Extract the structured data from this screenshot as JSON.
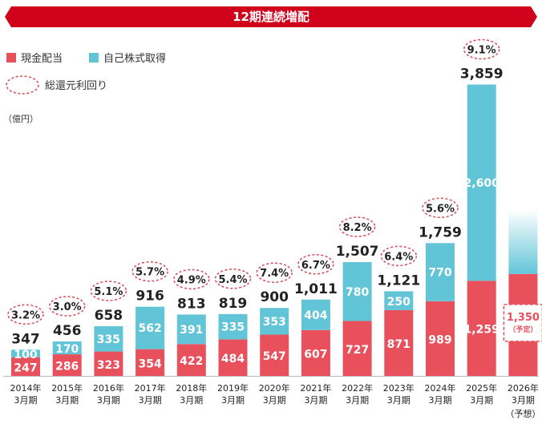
{
  "banner": {
    "title": "12期連続増配",
    "color": "#d0021b"
  },
  "legend": {
    "cash": "現金配当",
    "buyback": "自己株式取得",
    "yield": "総還元利回り"
  },
  "unit": "（億円）",
  "colors": {
    "cash": "#e8505b",
    "buyback": "#62c5d7",
    "ring": "#d94b57"
  },
  "chart_data": {
    "type": "bar",
    "stacked": true,
    "categories": [
      [
        "2014年",
        "3月期"
      ],
      [
        "2015年",
        "3月期"
      ],
      [
        "2016年",
        "3月期"
      ],
      [
        "2017年",
        "3月期"
      ],
      [
        "2018年",
        "3月期"
      ],
      [
        "2019年",
        "3月期"
      ],
      [
        "2020年",
        "3月期"
      ],
      [
        "2021年",
        "3月期"
      ],
      [
        "2022年",
        "3月期"
      ],
      [
        "2023年",
        "3月期"
      ],
      [
        "2024年",
        "3月期"
      ],
      [
        "2025年",
        "3月期"
      ],
      [
        "2026年",
        "3月期"
      ]
    ],
    "series": [
      {
        "name": "現金配当",
        "values": [
          247,
          286,
          323,
          354,
          422,
          484,
          547,
          607,
          727,
          871,
          989,
          1259,
          1350
        ]
      },
      {
        "name": "自己株式取得",
        "values": [
          100,
          170,
          335,
          562,
          391,
          335,
          353,
          404,
          780,
          250,
          770,
          2600,
          null
        ]
      }
    ],
    "totals": [
      347,
      456,
      658,
      916,
      813,
      819,
      900,
      1011,
      1507,
      1121,
      1759,
      3859,
      null
    ],
    "total_labels": [
      "347",
      "456",
      "658",
      "916",
      "813",
      "819",
      "900",
      "1,011",
      "1,507",
      "1,121",
      "1,759",
      "3,859",
      ""
    ],
    "segment_labels": {
      "cash": [
        "247",
        "286",
        "323",
        "354",
        "422",
        "484",
        "547",
        "607",
        "727",
        "871",
        "989",
        "1,259",
        "1,350"
      ],
      "buyback": [
        "100",
        "170",
        "335",
        "562",
        "391",
        "335",
        "353",
        "404",
        "780",
        "250",
        "770",
        "2,600",
        ""
      ]
    },
    "yield_values": [
      3.2,
      3.0,
      5.1,
      5.7,
      4.9,
      5.4,
      7.4,
      6.7,
      8.2,
      6.4,
      5.6,
      9.1,
      null
    ],
    "yield_labels": [
      "3.2%",
      "3.0%",
      "5.1%",
      "5.7%",
      "4.9%",
      "5.4%",
      "7.4%",
      "6.7%",
      "8.2%",
      "6.4%",
      "5.6%",
      "9.1%",
      ""
    ],
    "forecast": {
      "index": 12,
      "label": "1,350",
      "sub": "（予定）",
      "category_note": "（予想）"
    },
    "grid": false,
    "legend_position": "top-left"
  }
}
